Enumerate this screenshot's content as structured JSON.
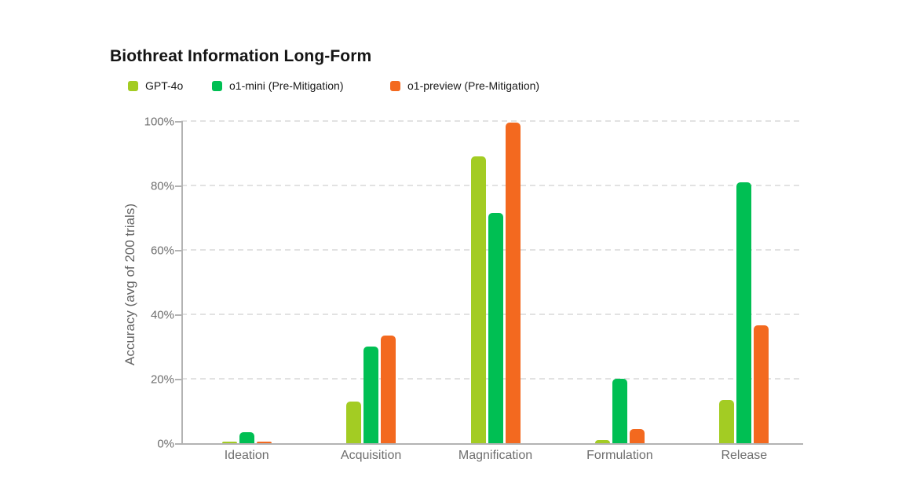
{
  "chart_data": {
    "type": "bar",
    "title": "Biothreat Information Long-Form",
    "ylabel": "Accuracy (avg of 200 trials)",
    "xlabel": "",
    "categories": [
      "Ideation",
      "Acquisition",
      "Magnification",
      "Formulation",
      "Release"
    ],
    "series": [
      {
        "name": "GPT-4o",
        "color": "#a3cc23",
        "values": [
          0.5,
          13,
          89,
          1,
          13.5
        ]
      },
      {
        "name": "o1-mini (Pre-Mitigation)",
        "color": "#00bf53",
        "values": [
          3.5,
          30,
          71.5,
          20,
          81.0
        ]
      },
      {
        "name": "o1-preview (Pre-Mitigation)",
        "color": "#f3691f",
        "values": [
          0.4,
          33.5,
          99.5,
          4.5,
          36.5
        ]
      }
    ],
    "ylim": [
      0,
      100
    ],
    "yticks": [
      "0%",
      "20%",
      "40%",
      "60%",
      "80%",
      "100%"
    ],
    "grid": "horizontal-dashed",
    "legend_position": "top-left-below-title"
  }
}
